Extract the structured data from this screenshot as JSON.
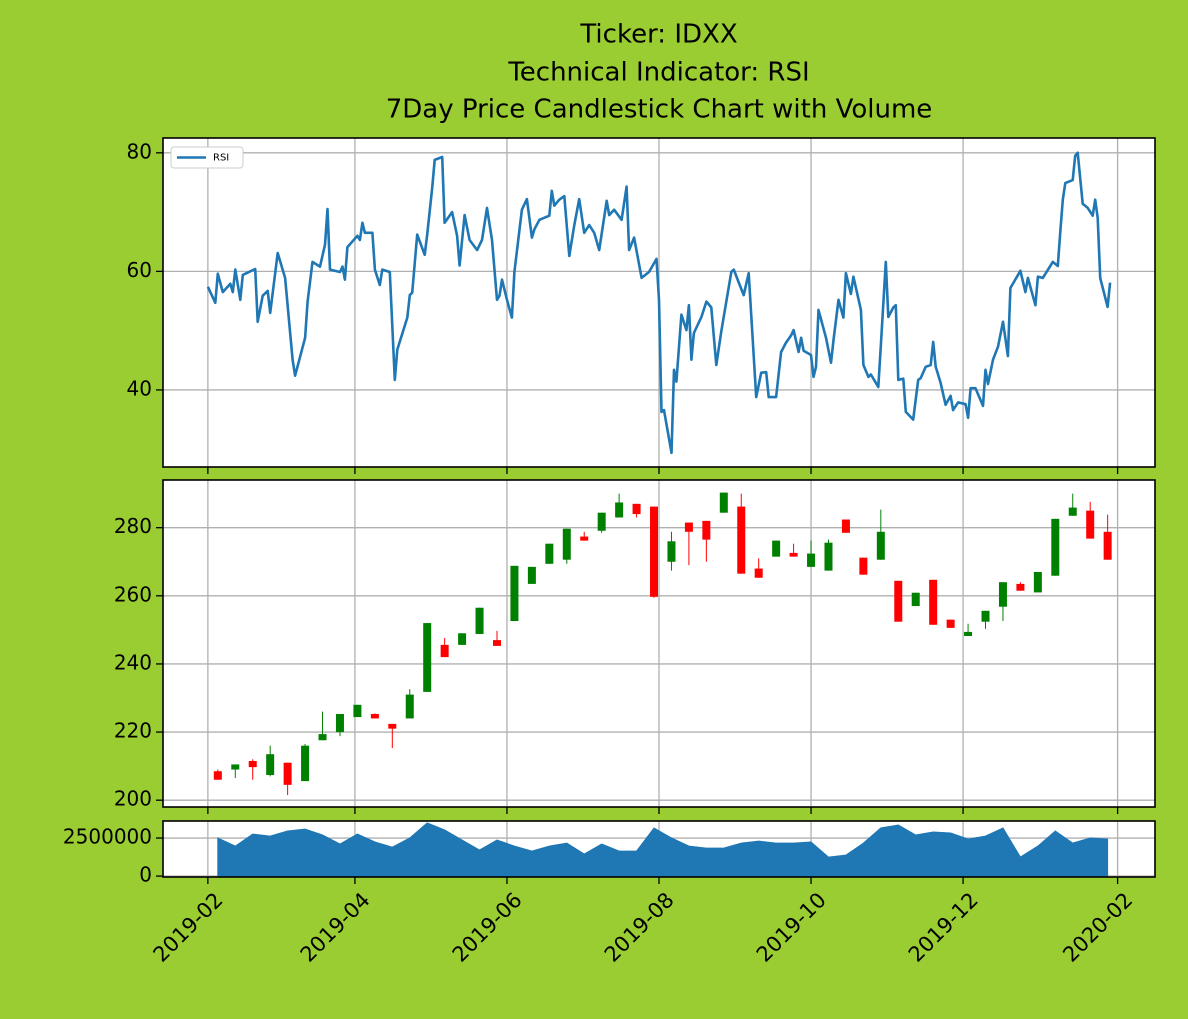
{
  "title": [
    "Ticker: IDXX",
    "Technical Indicator: RSI",
    "7Day Price Candlestick Chart with Volume"
  ],
  "chart_data": [
    {
      "type": "line",
      "grid": true,
      "legend": "upper left",
      "xlim": [
        "2019-01-14",
        "2020-02-16"
      ],
      "xticks": [
        "2019-02",
        "2019-04",
        "2019-06",
        "2019-08",
        "2019-10",
        "2019-12",
        "2020-02"
      ],
      "ylim": [
        27,
        82.5
      ],
      "yticks": [
        40,
        60,
        80
      ],
      "x": [
        "2019-02-01",
        "2019-02-04",
        "2019-02-05",
        "2019-02-07",
        "2019-02-10",
        "2019-02-11",
        "2019-02-12",
        "2019-02-14",
        "2019-02-15",
        "2019-02-20",
        "2019-02-21",
        "2019-02-23",
        "2019-02-25",
        "2019-02-26",
        "2019-03-01",
        "2019-03-04",
        "2019-03-07",
        "2019-03-08",
        "2019-03-12",
        "2019-03-13",
        "2019-03-15",
        "2019-03-18",
        "2019-03-20",
        "2019-03-21",
        "2019-03-22",
        "2019-03-26",
        "2019-03-27",
        "2019-03-28",
        "2019-03-29",
        "2019-04-02",
        "2019-04-03",
        "2019-04-04",
        "2019-04-05",
        "2019-04-08",
        "2019-04-09",
        "2019-04-11",
        "2019-04-12",
        "2019-04-15",
        "2019-04-17",
        "2019-04-18",
        "2019-04-22",
        "2019-04-23",
        "2019-04-24",
        "2019-04-26",
        "2019-04-29",
        "2019-04-30",
        "2019-05-02",
        "2019-05-03",
        "2019-05-06",
        "2019-05-07",
        "2019-05-10",
        "2019-05-12",
        "2019-05-13",
        "2019-05-15",
        "2019-05-17",
        "2019-05-20",
        "2019-05-22",
        "2019-05-24",
        "2019-05-26",
        "2019-05-28",
        "2019-05-29",
        "2019-05-30",
        "2019-06-01",
        "2019-06-03",
        "2019-06-04",
        "2019-06-07",
        "2019-06-09",
        "2019-06-11",
        "2019-06-12",
        "2019-06-14",
        "2019-06-18",
        "2019-06-19",
        "2019-06-20",
        "2019-06-22",
        "2019-06-24",
        "2019-06-26",
        "2019-06-28",
        "2019-06-30",
        "2019-07-02",
        "2019-07-04",
        "2019-07-06",
        "2019-07-08",
        "2019-07-11",
        "2019-07-12",
        "2019-07-14",
        "2019-07-17",
        "2019-07-19",
        "2019-07-20",
        "2019-07-22",
        "2019-07-25",
        "2019-07-28",
        "2019-07-31",
        "2019-08-01",
        "2019-08-02",
        "2019-08-03",
        "2019-08-06",
        "2019-08-07",
        "2019-08-08",
        "2019-08-10",
        "2019-08-12",
        "2019-08-13",
        "2019-08-14",
        "2019-08-15",
        "2019-08-18",
        "2019-08-20",
        "2019-08-22",
        "2019-08-24",
        "2019-08-26",
        "2019-08-30",
        "2019-08-31",
        "2019-09-02",
        "2019-09-04",
        "2019-09-06",
        "2019-09-09",
        "2019-09-11",
        "2019-09-13",
        "2019-09-14",
        "2019-09-17",
        "2019-09-19",
        "2019-09-21",
        "2019-09-23",
        "2019-09-24",
        "2019-09-26",
        "2019-09-27",
        "2019-09-28",
        "2019-10-01",
        "2019-10-02",
        "2019-10-03",
        "2019-10-04",
        "2019-10-07",
        "2019-10-09",
        "2019-10-10",
        "2019-10-12",
        "2019-10-14",
        "2019-10-15",
        "2019-10-17",
        "2019-10-18",
        "2019-10-21",
        "2019-10-22",
        "2019-10-24",
        "2019-10-25",
        "2019-10-28",
        "2019-10-29",
        "2019-10-31",
        "2019-11-01",
        "2019-11-03",
        "2019-11-04",
        "2019-11-05",
        "2019-11-07",
        "2019-11-08",
        "2019-11-11",
        "2019-11-13",
        "2019-11-14",
        "2019-11-16",
        "2019-11-18",
        "2019-11-19",
        "2019-11-20",
        "2019-11-22",
        "2019-11-24",
        "2019-11-26",
        "2019-11-27",
        "2019-11-29",
        "2019-12-02",
        "2019-12-03",
        "2019-12-04",
        "2019-12-06",
        "2019-12-09",
        "2019-12-10",
        "2019-12-11",
        "2019-12-13",
        "2019-12-15",
        "2019-12-17",
        "2019-12-19",
        "2019-12-20",
        "2019-12-24",
        "2019-12-26",
        "2019-12-27",
        "2019-12-30",
        "2019-12-31",
        "2020-01-02",
        "2020-01-06",
        "2020-01-08",
        "2020-01-09",
        "2020-01-10",
        "2020-01-11",
        "2020-01-14",
        "2020-01-15",
        "2020-01-16",
        "2020-01-18",
        "2020-01-20",
        "2020-01-22",
        "2020-01-23",
        "2020-01-24",
        "2020-01-25",
        "2020-01-28",
        "2020-01-29"
      ],
      "series": [
        {
          "name": "RSI",
          "color": "#1f77b4",
          "values": [
            57.4,
            54.7,
            59.6,
            56.5,
            57.9,
            56.5,
            60.3,
            55.2,
            59.4,
            60.4,
            51.5,
            55.9,
            56.7,
            53,
            63.1,
            58.9,
            45.1,
            42.4,
            48.8,
            54.9,
            61.6,
            60.8,
            64.5,
            70.5,
            60.3,
            59.9,
            60.8,
            58.6,
            64.1,
            66,
            65.3,
            68.2,
            66.5,
            66.5,
            60.3,
            57.7,
            60.3,
            59.9,
            41.7,
            46.8,
            52.2,
            56,
            56.4,
            66.2,
            62.8,
            66.2,
            74.1,
            78.8,
            79.3,
            68.2,
            70,
            66,
            61,
            69.5,
            65.3,
            63.6,
            65.3,
            70.7,
            65.3,
            55.2,
            55.9,
            58.6,
            55.2,
            52.2,
            59.9,
            70.4,
            72.2,
            65.7,
            67.1,
            68.7,
            69.4,
            73.6,
            71.1,
            72.1,
            72.7,
            62.6,
            67.8,
            72.2,
            66.5,
            67.8,
            66.5,
            63.6,
            71.9,
            69.5,
            70.4,
            68.7,
            74.3,
            63.6,
            65.7,
            58.9,
            59.9,
            62.1,
            55.2,
            36.3,
            36.6,
            29.4,
            43.4,
            41.4,
            52.7,
            50.1,
            54.3,
            45.1,
            49.6,
            52.3,
            54.9,
            53.9,
            44.2,
            49.9,
            59.9,
            60.3,
            58.1,
            56,
            59.7,
            38.8,
            42.9,
            43,
            38.8,
            38.8,
            46.4,
            48,
            49.2,
            50.1,
            46.4,
            48.8,
            46.6,
            45.9,
            42.2,
            43.9,
            53.5,
            48.8,
            44.6,
            48.4,
            55.2,
            52.2,
            59.7,
            56.2,
            59.1,
            53.5,
            44.2,
            42.2,
            42.6,
            40.5,
            47.4,
            61.6,
            52.3,
            53.9,
            54.3,
            41.7,
            41.9,
            36.3,
            35,
            41.7,
            42,
            43.9,
            44.2,
            48.1,
            43.9,
            41.2,
            37.5,
            39,
            36.6,
            37.9,
            37.6,
            35.3,
            40.3,
            40.3,
            37.3,
            43.4,
            41,
            45.1,
            47.3,
            51.5,
            45.7,
            57.2,
            60.1,
            56.5,
            58.9,
            54.3,
            59.1,
            58.9,
            61.6,
            60.9,
            66.7,
            72.1,
            74.9,
            75.4,
            79.5,
            80,
            71.4,
            70.7,
            69.4,
            72.1,
            69,
            58.9,
            54,
            58.1
          ]
        }
      ]
    },
    {
      "type": "candlestick",
      "grid": true,
      "up_color": "#008000",
      "down_color": "#ff0000",
      "xlim": [
        "2019-01-14",
        "2020-02-16"
      ],
      "xticks": [
        "2019-02",
        "2019-04",
        "2019-06",
        "2019-08",
        "2019-10",
        "2019-12",
        "2020-02"
      ],
      "ylim": [
        198,
        294
      ],
      "yticks": [
        200,
        220,
        240,
        260,
        280
      ],
      "x": [
        "2019-02-05",
        "2019-02-12",
        "2019-02-19",
        "2019-02-26",
        "2019-03-05",
        "2019-03-12",
        "2019-03-19",
        "2019-03-26",
        "2019-04-02",
        "2019-04-09",
        "2019-04-16",
        "2019-04-23",
        "2019-04-30",
        "2019-05-07",
        "2019-05-14",
        "2019-05-21",
        "2019-05-28",
        "2019-06-04",
        "2019-06-11",
        "2019-06-18",
        "2019-06-25",
        "2019-07-02",
        "2019-07-09",
        "2019-07-16",
        "2019-07-23",
        "2019-07-30",
        "2019-08-06",
        "2019-08-13",
        "2019-08-20",
        "2019-08-27",
        "2019-09-03",
        "2019-09-10",
        "2019-09-17",
        "2019-09-24",
        "2019-10-01",
        "2019-10-08",
        "2019-10-15",
        "2019-10-22",
        "2019-10-29",
        "2019-11-05",
        "2019-11-12",
        "2019-11-19",
        "2019-11-26",
        "2019-12-03",
        "2019-12-10",
        "2019-12-17",
        "2019-12-24",
        "2019-12-31",
        "2020-01-07",
        "2020-01-14",
        "2020-01-21",
        "2020-01-28"
      ],
      "open": [
        208.5,
        209,
        211.5,
        207.4,
        211,
        205.6,
        217.6,
        220,
        224.4,
        225.3,
        222.4,
        224,
        231.8,
        245.6,
        245.6,
        248.8,
        247,
        252.6,
        263.5,
        269.4,
        270.6,
        277.4,
        279.1,
        283,
        287,
        286.2,
        270,
        281.5,
        282,
        284.4,
        286.2,
        268,
        271.5,
        272.6,
        268.5,
        267.4,
        282.4,
        271.2,
        270.6,
        264.4,
        257,
        264.7,
        253,
        248.2,
        252.4,
        256.8,
        263.5,
        261,
        265.9,
        283.5,
        285,
        278.8
      ],
      "high": [
        209,
        210.5,
        212,
        216,
        211,
        216.5,
        226,
        225.3,
        228,
        225.5,
        222.4,
        232.6,
        252,
        247.6,
        249,
        256.5,
        249.7,
        268.8,
        268.5,
        275.3,
        279.7,
        278.8,
        284.4,
        290,
        287,
        286.2,
        278.8,
        281.5,
        282,
        290.3,
        290,
        271,
        276.2,
        275.3,
        276.2,
        276.5,
        282.4,
        271.2,
        285.3,
        264.4,
        260.9,
        264.7,
        253,
        251.8,
        255.6,
        264,
        264,
        267,
        282.6,
        290,
        287.6,
        283.8
      ],
      "low": [
        206,
        206.5,
        206,
        207,
        201.5,
        205.6,
        217.6,
        218.8,
        224.4,
        224,
        215.3,
        224,
        231.8,
        242,
        245.6,
        248.8,
        245.3,
        252.6,
        263.5,
        269.4,
        269.4,
        276.2,
        278.5,
        283,
        283,
        259.4,
        267.4,
        269,
        270,
        284.4,
        266.5,
        265.3,
        271.5,
        271.5,
        268.5,
        267.4,
        278.5,
        266.2,
        270.6,
        252.4,
        257,
        251.5,
        250.6,
        248.2,
        250.3,
        252.6,
        261.5,
        261,
        265.9,
        283.5,
        276.8,
        270.6
      ],
      "close": [
        206,
        210.5,
        209.7,
        213.5,
        204.5,
        216,
        219.4,
        225.3,
        228,
        224,
        221,
        231,
        252,
        242,
        249,
        256.5,
        245.3,
        268.8,
        268.5,
        275.3,
        279.7,
        276.2,
        284.4,
        287.4,
        284,
        259.7,
        276,
        278.8,
        276.5,
        290.3,
        266.5,
        265.3,
        276.2,
        271.5,
        272.4,
        275.6,
        278.5,
        266.2,
        278.8,
        252.4,
        260.9,
        251.5,
        250.6,
        249.4,
        255.6,
        264,
        261.5,
        267,
        282.6,
        285.9,
        276.8,
        270.6
      ]
    },
    {
      "type": "area",
      "grid": true,
      "color": "#1f77b4",
      "xlim": [
        "2019-01-14",
        "2020-02-16"
      ],
      "xticks": [
        "2019-02",
        "2019-04",
        "2019-06",
        "2019-08",
        "2019-10",
        "2019-12",
        "2020-02"
      ],
      "ylim": [
        -60000,
        3620000
      ],
      "yticks": [
        0,
        2500000
      ],
      "x": [
        "2019-02-05",
        "2019-02-12",
        "2019-02-19",
        "2019-02-26",
        "2019-03-05",
        "2019-03-12",
        "2019-03-19",
        "2019-03-26",
        "2019-04-02",
        "2019-04-09",
        "2019-04-16",
        "2019-04-23",
        "2019-04-30",
        "2019-05-07",
        "2019-05-14",
        "2019-05-21",
        "2019-05-28",
        "2019-06-04",
        "2019-06-11",
        "2019-06-18",
        "2019-06-25",
        "2019-07-02",
        "2019-07-09",
        "2019-07-16",
        "2019-07-23",
        "2019-07-30",
        "2019-08-06",
        "2019-08-13",
        "2019-08-20",
        "2019-08-27",
        "2019-09-03",
        "2019-09-10",
        "2019-09-17",
        "2019-09-24",
        "2019-10-01",
        "2019-10-08",
        "2019-10-15",
        "2019-10-22",
        "2019-10-29",
        "2019-11-05",
        "2019-11-12",
        "2019-11-19",
        "2019-11-26",
        "2019-12-03",
        "2019-12-10",
        "2019-12-17",
        "2019-12-24",
        "2019-12-31",
        "2020-01-07",
        "2020-01-14",
        "2020-01-21",
        "2020-01-28"
      ],
      "values": [
        2500000,
        1970000,
        2760000,
        2630000,
        2960000,
        3090000,
        2700000,
        2100000,
        2760000,
        2240000,
        1900000,
        2500000,
        3490000,
        3030000,
        2370000,
        1710000,
        2370000,
        1970000,
        1640000,
        1970000,
        2170000,
        1450000,
        2100000,
        1640000,
        1640000,
        3160000,
        2500000,
        1970000,
        1840000,
        1840000,
        2170000,
        2300000,
        2170000,
        2170000,
        2240000,
        1250000,
        1380000,
        2170000,
        3160000,
        3360000,
        2700000,
        2900000,
        2830000,
        2430000,
        2630000,
        3160000,
        1250000,
        1970000,
        2960000,
        2170000,
        2500000,
        2430000
      ]
    }
  ]
}
